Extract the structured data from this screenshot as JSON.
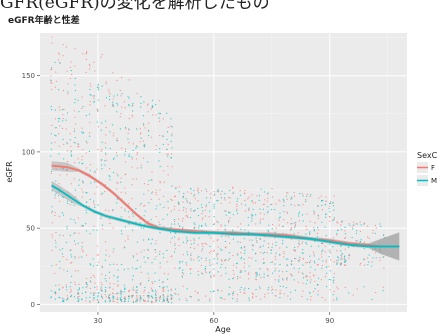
{
  "banner_text": "GFR(eGFR)の変化を解析したもの",
  "chart_data": {
    "type": "scatter",
    "title": "eGFR年齢と性差",
    "xlabel": "Age",
    "ylabel": "eGFR",
    "xlim": [
      15,
      110
    ],
    "ylim": [
      -5,
      178
    ],
    "xticks": [
      30,
      60,
      90
    ],
    "yticks": [
      0,
      50,
      100,
      150
    ],
    "grid": true,
    "legend": {
      "title": "SexC",
      "position": "right",
      "entries": [
        "F",
        "M"
      ]
    },
    "scatter_x_range": [
      18,
      104
    ],
    "series": [
      {
        "name": "F",
        "color": "#F8766D",
        "smooth": {
          "x": [
            18,
            22,
            25,
            28,
            31,
            34,
            37,
            40,
            43,
            46,
            50,
            55,
            60,
            65,
            70,
            75,
            80,
            85,
            90,
            95,
            100,
            103,
            105,
            108
          ],
          "y": [
            91,
            90,
            88,
            84,
            79,
            73,
            66,
            59,
            53,
            50,
            49,
            48,
            47,
            47,
            46,
            46,
            45,
            43,
            42,
            40,
            39,
            38,
            38,
            38
          ]
        }
      },
      {
        "name": "M",
        "color": "#00BFC4",
        "smooth": {
          "x": [
            18,
            20,
            23,
            26,
            29,
            32,
            35,
            38,
            41,
            45,
            50,
            55,
            60,
            65,
            70,
            75,
            80,
            85,
            90,
            95,
            100,
            103,
            105,
            108
          ],
          "y": [
            78,
            75,
            70,
            65,
            61,
            58,
            56,
            54,
            52,
            50,
            48,
            47,
            47,
            46,
            46,
            45,
            44,
            43,
            41,
            39,
            38,
            38,
            38,
            38
          ]
        }
      }
    ]
  }
}
